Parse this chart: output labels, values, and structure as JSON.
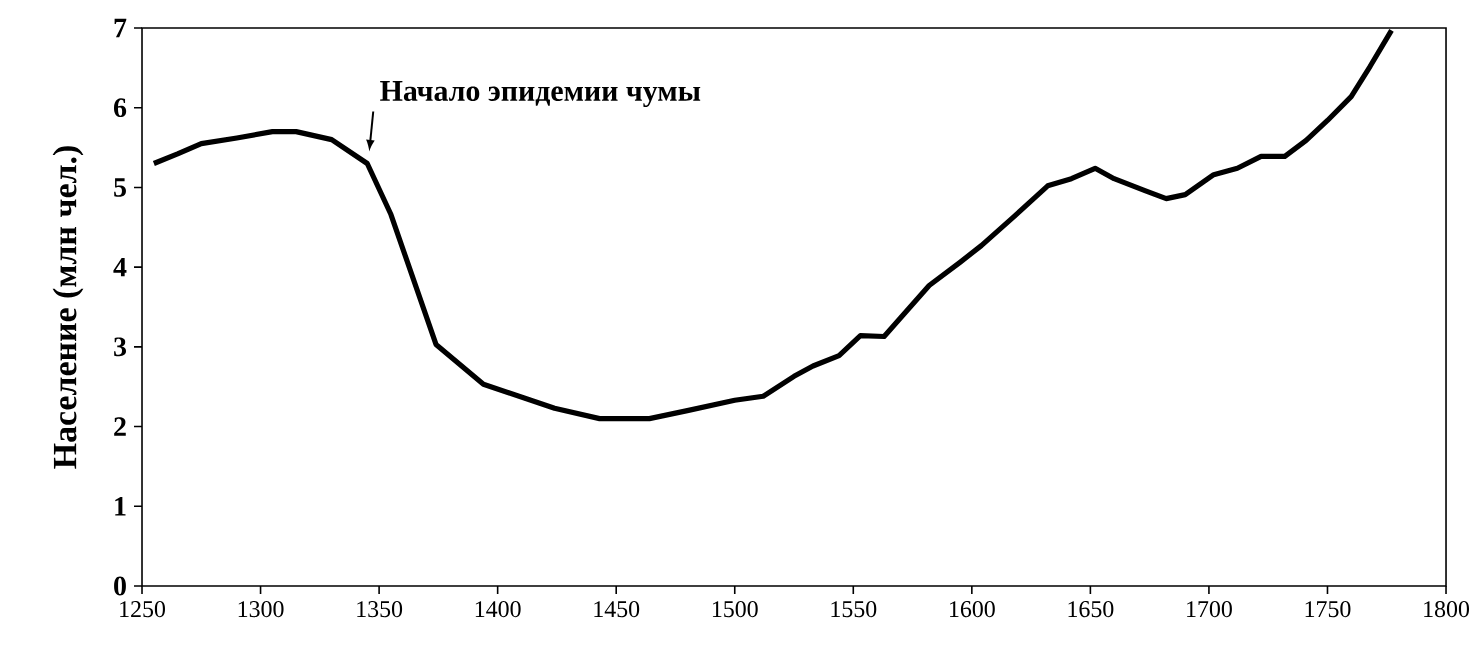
{
  "chart_data": {
    "type": "line",
    "ylabel": "Население (млн чел.)",
    "x": [
      1255,
      1265,
      1275,
      1290,
      1305,
      1315,
      1330,
      1345,
      1355,
      1374,
      1394,
      1424,
      1443,
      1464,
      1480,
      1500,
      1512,
      1525,
      1533,
      1544,
      1553,
      1563,
      1571,
      1582,
      1595,
      1604,
      1618,
      1632,
      1642,
      1652,
      1660,
      1673,
      1682,
      1690,
      1702,
      1712,
      1722,
      1732,
      1741,
      1750,
      1760,
      1768,
      1777
    ],
    "values": [
      5.3,
      5.42,
      5.55,
      5.62,
      5.7,
      5.7,
      5.6,
      5.3,
      4.66,
      3.03,
      2.53,
      2.23,
      2.1,
      2.1,
      2.2,
      2.33,
      2.38,
      2.63,
      2.76,
      2.89,
      3.14,
      3.13,
      3.4,
      3.77,
      4.06,
      4.27,
      4.64,
      5.02,
      5.11,
      5.24,
      5.11,
      4.96,
      4.86,
      4.91,
      5.16,
      5.24,
      5.39,
      5.39,
      5.59,
      5.84,
      6.14,
      6.52,
      6.97
    ],
    "color": "#000000",
    "xlim": [
      1250,
      1800
    ],
    "ylim": [
      0,
      7
    ],
    "xticks": [
      1250,
      1300,
      1350,
      1400,
      1450,
      1500,
      1550,
      1600,
      1650,
      1700,
      1750,
      1800
    ],
    "yticks": [
      0,
      1,
      2,
      3,
      4,
      5,
      6,
      7
    ],
    "grid": false,
    "marker": "none",
    "line_style": "solid",
    "annotations": [
      {
        "text": "Начало эпидемии чумы",
        "x": 1345,
        "y": 5.3
      }
    ]
  }
}
